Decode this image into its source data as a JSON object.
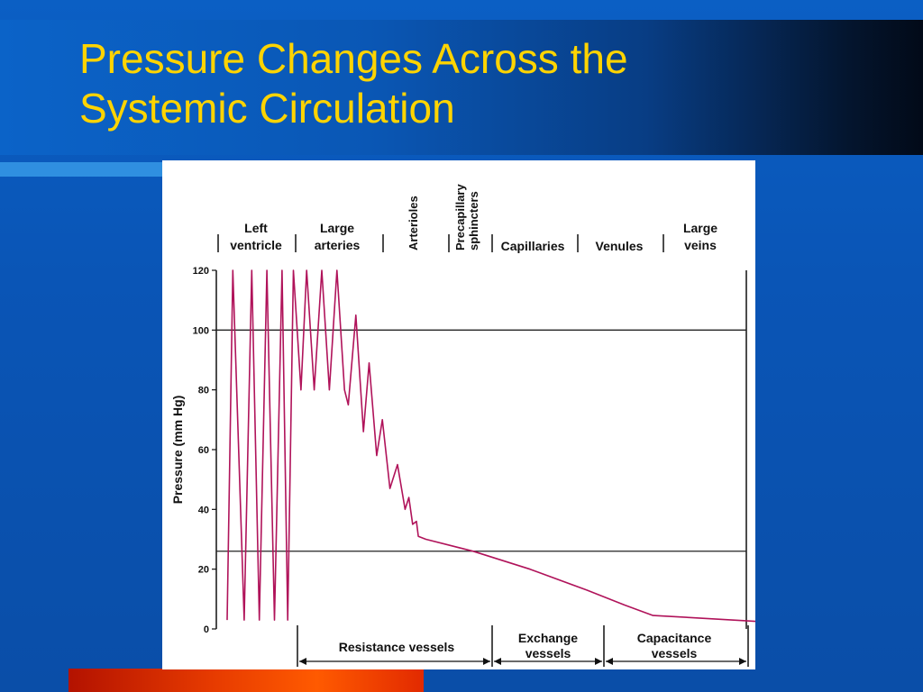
{
  "slide": {
    "title_line1": "Pressure Changes Across the",
    "title_line2": "Systemic Circulation",
    "colors": {
      "title": "#ffd400",
      "background": "#0a56b8",
      "curve": "#b0135a"
    }
  },
  "chart_data": {
    "type": "line",
    "ylabel": "Pressure (mm Hg)",
    "ylim": [
      0,
      120
    ],
    "yticks": [
      "0",
      "20",
      "40",
      "60",
      "80",
      "100",
      "120"
    ],
    "reference_lines": [
      100,
      26
    ],
    "grid": false,
    "regions": [
      {
        "lines": [
          "Left",
          "ventricle"
        ]
      },
      {
        "lines": [
          "Large",
          "arteries"
        ]
      },
      {
        "lines": [
          "Arterioles"
        ]
      },
      {
        "lines": [
          "Precapillary",
          "sphincters"
        ]
      },
      {
        "lines": [
          "Capillaries"
        ]
      },
      {
        "lines": [
          "Venules"
        ]
      },
      {
        "lines": [
          "Large",
          "veins"
        ]
      }
    ],
    "vessel_groups": [
      {
        "lines": [
          "Resistance vessels"
        ]
      },
      {
        "lines": [
          "Exchange",
          "vessels"
        ]
      },
      {
        "lines": [
          "Capacitance",
          "vessels"
        ]
      }
    ],
    "series": [
      {
        "description_values": "pressure (mm Hg) along circulation, left ventricle to large veins",
        "x": [
          0,
          3,
          9,
          13,
          17,
          21,
          25,
          29,
          32,
          35,
          39,
          42,
          46,
          50,
          54,
          58,
          62,
          64,
          68,
          72,
          75,
          79,
          82,
          86,
          90,
          94,
          96,
          98,
          100,
          101,
          105,
          130,
          160,
          190,
          210,
          225,
          245,
          280
        ],
        "y": [
          3,
          120,
          3,
          120,
          3,
          120,
          3,
          120,
          3,
          120,
          80,
          120,
          80,
          120,
          80,
          120,
          80,
          75,
          105,
          66,
          89,
          58,
          70,
          47,
          55,
          40,
          44,
          35,
          36,
          31,
          30,
          26,
          20,
          13,
          8,
          4.5,
          3.8,
          2.5
        ]
      }
    ]
  }
}
